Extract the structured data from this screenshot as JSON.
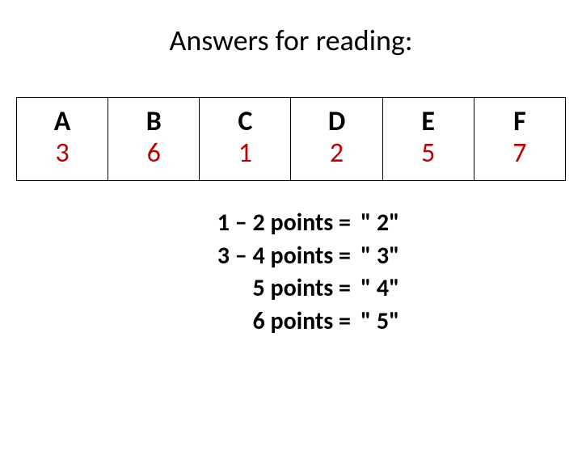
{
  "title": "Answers for reading:",
  "table": {
    "border_color": "#000000",
    "letter_color": "#000000",
    "number_color": "#c00000",
    "background_color": "#ffffff",
    "letter_fontsize": 34,
    "number_fontsize": 34,
    "cells": [
      {
        "letter": "A",
        "number": "3"
      },
      {
        "letter": "B",
        "number": "6"
      },
      {
        "letter": "C",
        "number": "1"
      },
      {
        "letter": "D",
        "number": "2"
      },
      {
        "letter": "E",
        "number": "5"
      },
      {
        "letter": "F",
        "number": "7"
      }
    ]
  },
  "scoring": {
    "fontsize": 30,
    "fontweight": "bold",
    "rows": [
      {
        "label": "1 – 2 points =",
        "value": "\" 2\""
      },
      {
        "label": "3 – 4 points =",
        "value": "\" 3\""
      },
      {
        "label": "5 points =",
        "value": "\" 4\""
      },
      {
        "label": "6 points =",
        "value": "\" 5\""
      }
    ]
  }
}
